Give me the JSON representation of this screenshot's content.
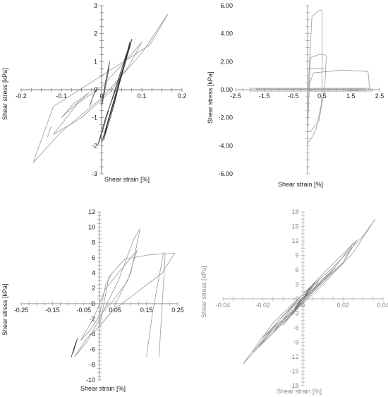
{
  "chart_data": [
    {
      "type": "line",
      "xlabel": "Shear strain [%]",
      "ylabel": "Shear stress [kPa]",
      "xlim": [
        -0.2,
        0.2
      ],
      "ylim": [
        -3,
        3
      ],
      "xticks": [
        "-0.2",
        "-0.1",
        "0",
        "0.1",
        "0.2"
      ],
      "xtick_values": [
        -0.2,
        -0.1,
        0,
        0.1,
        0.2
      ],
      "yticks": [
        "3",
        "2",
        "1",
        "0",
        "-1",
        "-2",
        "-3"
      ],
      "ytick_values": [
        3,
        2,
        1,
        0,
        -1,
        -2,
        -3
      ],
      "grid": false,
      "series": [
        {
          "stroke": "#9a9a9a",
          "width": 0.8,
          "x": [
            -0.17,
            -0.1,
            0.0,
            0.1,
            0.16,
            0.165,
            0.12,
            0.0,
            -0.12,
            -0.17
          ],
          "y": [
            -2.6,
            -1.5,
            -0.3,
            1.3,
            2.6,
            2.7,
            1.6,
            0.5,
            -0.6,
            -2.6
          ]
        },
        {
          "stroke": "#9a9a9a",
          "width": 0.8,
          "x": [
            -0.12,
            -0.05,
            0.02,
            0.07,
            0.1,
            0.07,
            0.0,
            -0.06,
            -0.12
          ],
          "y": [
            -1.6,
            -1.0,
            -0.1,
            0.9,
            1.7,
            1.2,
            0.1,
            -0.5,
            -1.6
          ]
        },
        {
          "stroke": "#9a9a9a",
          "width": 0.8,
          "x": [
            -0.1,
            -0.07,
            -0.03,
            -0.07,
            -0.1
          ],
          "y": [
            -1.0,
            -0.5,
            -0.1,
            -0.6,
            -1.0
          ]
        },
        {
          "stroke": "#9a9a9a",
          "width": 0.8,
          "x": [
            -0.135,
            -0.125
          ],
          "y": [
            -1.7,
            -1.3
          ]
        },
        {
          "stroke": "#333333",
          "width": 0.8,
          "x": [
            -0.01,
            0.0,
            0.02,
            0.06,
            0.075,
            0.07,
            0.04,
            0.01,
            -0.01
          ],
          "y": [
            -2.0,
            -1.6,
            -0.6,
            1.2,
            1.8,
            1.5,
            0.2,
            -1.0,
            -2.0
          ]
        },
        {
          "stroke": "#333333",
          "width": 0.8,
          "x": [
            0.0,
            0.02,
            0.05,
            0.075,
            0.06,
            0.03,
            0.0
          ],
          "y": [
            -1.9,
            -0.9,
            0.6,
            1.8,
            1.0,
            -0.5,
            -1.9
          ]
        },
        {
          "stroke": "#333333",
          "width": 0.8,
          "x": [
            0.005,
            0.03,
            0.06,
            0.07,
            0.045,
            0.015,
            0.005
          ],
          "y": [
            -1.8,
            -0.6,
            1.1,
            1.7,
            0.3,
            -1.2,
            -1.8
          ]
        },
        {
          "stroke": "#333333",
          "width": 0.8,
          "x": [
            0.0,
            0.015,
            0.02,
            0.01,
            0.0
          ],
          "y": [
            -0.6,
            0.5,
            1.0,
            0.3,
            -0.6
          ]
        },
        {
          "stroke": "#333333",
          "width": 0.8,
          "x": [
            -0.03,
            -0.02,
            -0.01
          ],
          "y": [
            -0.6,
            -0.2,
            0.1
          ]
        }
      ]
    },
    {
      "type": "line",
      "xlabel": "Shear strain [%]",
      "ylabel": "Shear stress [kPa]",
      "xlim": [
        -2.5,
        2.5
      ],
      "ylim": [
        -6,
        6
      ],
      "xticks": [
        "-2.5",
        "-1.5",
        "-0.5",
        "0.5",
        "1.5",
        "2.5"
      ],
      "xtick_values": [
        -2.5,
        -1.5,
        -0.5,
        0.5,
        1.5,
        2.5
      ],
      "yticks": [
        "6.00",
        "4.00",
        "2.00",
        "0.00",
        "-2.00",
        "-4.00",
        "-6.00"
      ],
      "ytick_values": [
        6,
        4,
        2,
        0,
        -2,
        -4,
        -6
      ],
      "grid": false,
      "series": [
        {
          "stroke": "#9a9a9a",
          "width": 0.8,
          "x": [
            0.0,
            0.02,
            0.15,
            0.35,
            0.48,
            0.5,
            0.5,
            0.48,
            0.3,
            0.1,
            0.0
          ],
          "y": [
            -3.8,
            0.0,
            5.2,
            5.6,
            5.7,
            5.6,
            0.0,
            -1.0,
            -2.8,
            -3.6,
            -3.8
          ]
        },
        {
          "stroke": "#9a9a9a",
          "width": 0.8,
          "x": [
            0.0,
            0.1,
            0.4,
            0.6,
            0.65,
            0.6,
            0.4,
            0.1,
            0.0
          ],
          "y": [
            -3.0,
            2.3,
            2.5,
            2.5,
            2.4,
            0.2,
            -2.2,
            -3.0,
            -3.0
          ]
        },
        {
          "stroke": "#9a9a9a",
          "width": 0.8,
          "x": [
            0.0,
            0.2,
            1.2,
            2.1,
            2.15,
            2.1,
            1.2,
            0.2,
            0.0
          ],
          "y": [
            0.0,
            1.2,
            1.4,
            1.3,
            0.2,
            0.0,
            -0.1,
            -0.1,
            0.0
          ]
        },
        {
          "stroke": "#9a9a9a",
          "width": 0.8,
          "x": [
            -2.0,
            2.2,
            2.2,
            -2.0,
            -2.0
          ],
          "y": [
            0.1,
            0.1,
            -0.1,
            -0.1,
            0.1
          ]
        },
        {
          "stroke": "#9a9a9a",
          "width": 0.8,
          "x": [
            -1.8,
            2.0
          ],
          "y": [
            0.05,
            0.05
          ]
        },
        {
          "stroke": "#9a9a9a",
          "width": 0.8,
          "x": [
            0.0,
            0.0
          ],
          "y": [
            -3.8,
            6.0
          ]
        },
        {
          "stroke": "#9a9a9a",
          "width": 0.8,
          "x": [
            -0.05,
            0.6
          ],
          "y": [
            1.5,
            1.5
          ]
        }
      ]
    },
    {
      "type": "line",
      "xlabel": "Shear strain [%]",
      "ylabel": "Shear stress [kPa]",
      "xlim": [
        -0.25,
        0.25
      ],
      "ylim": [
        -10,
        12
      ],
      "xticks": [
        "-0.25",
        "-0.15",
        "-0.05",
        "0.05",
        "0.15",
        "0.25"
      ],
      "xtick_values": [
        -0.25,
        -0.15,
        -0.05,
        0.05,
        0.15,
        0.25
      ],
      "yticks": [
        "12",
        "10",
        "8",
        "6",
        "4",
        "2",
        "0",
        "-2",
        "-4",
        "-6",
        "-8",
        "-10"
      ],
      "ytick_values": [
        12,
        10,
        8,
        6,
        4,
        2,
        0,
        -2,
        -4,
        -6,
        -8,
        -10
      ],
      "grid": false,
      "series": [
        {
          "stroke": "#9a9a9a",
          "width": 0.8,
          "x": [
            -0.08,
            -0.04,
            0.0,
            0.06,
            0.11,
            0.13,
            0.1,
            0.04,
            0.0,
            -0.04,
            -0.08
          ],
          "y": [
            -7.0,
            -5.0,
            -2.0,
            3.0,
            8.5,
            9.8,
            4.0,
            -1.0,
            -3.0,
            -4.5,
            -7.0
          ]
        },
        {
          "stroke": "#9a9a9a",
          "width": 0.8,
          "x": [
            -0.06,
            -0.02,
            0.02,
            0.08,
            0.12,
            0.09,
            0.04,
            0.0,
            -0.03,
            -0.06
          ],
          "y": [
            -4.8,
            -2.0,
            2.0,
            5.0,
            7.0,
            3.0,
            0.2,
            -1.6,
            -3.5,
            -4.8
          ]
        },
        {
          "stroke": "#9a9a9a",
          "width": 0.8,
          "x": [
            0.0,
            0.03,
            0.08,
            0.16,
            0.24,
            0.2,
            0.12,
            0.04,
            0.0
          ],
          "y": [
            -3.0,
            3.5,
            5.8,
            6.4,
            6.6,
            4.0,
            1.5,
            -1.0,
            -3.0
          ]
        },
        {
          "stroke": "#9a9a9a",
          "width": 0.8,
          "x": [
            0.0,
            0.01,
            0.02,
            0.04
          ],
          "y": [
            -1.5,
            0.5,
            2.5,
            4.0
          ]
        },
        {
          "stroke": "#9a9a9a",
          "width": 0.8,
          "x": [
            0.15,
            0.17,
            0.205
          ],
          "y": [
            -7.0,
            -1.0,
            6.8
          ]
        },
        {
          "stroke": "#9a9a9a",
          "width": 0.8,
          "x": [
            0.19,
            0.21
          ],
          "y": [
            -7.0,
            6.5
          ]
        },
        {
          "stroke": "#333333",
          "width": 0.8,
          "x": [
            -0.09,
            -0.075
          ],
          "y": [
            -7.0,
            -5.0
          ]
        },
        {
          "stroke": "#333333",
          "width": 0.8,
          "x": [
            -0.085,
            -0.07
          ],
          "y": [
            -6.5,
            -4.5
          ]
        }
      ]
    },
    {
      "type": "line",
      "xlabel": "Shear strain [%]",
      "ylabel": "Shear stress [kPa]",
      "xlim": [
        -0.04,
        0.04
      ],
      "ylim": [
        -18,
        18
      ],
      "xticks": [
        "-0.04",
        "-0.02",
        "0",
        "0.02",
        "0.04"
      ],
      "xtick_values": [
        -0.04,
        -0.02,
        0,
        0.02,
        0.04
      ],
      "yticks": [
        "18",
        "15",
        "12",
        "9",
        "6",
        "3",
        "0",
        "-3",
        "-6",
        "-9",
        "-12",
        "-15",
        "-18"
      ],
      "ytick_values": [
        18,
        15,
        12,
        9,
        6,
        3,
        0,
        -3,
        -6,
        -9,
        -12,
        -15,
        -18
      ],
      "grid": false,
      "series": [
        {
          "stroke": "#9a9a9a",
          "width": 0.8,
          "x": [
            -0.03,
            -0.02,
            -0.005,
            0.01,
            0.025,
            0.036,
            0.03,
            0.015,
            0.0,
            -0.015,
            -0.03
          ],
          "y": [
            -13.5,
            -9.0,
            -3.0,
            3.0,
            9.5,
            16.5,
            13.0,
            6.5,
            1.0,
            -5.0,
            -13.5
          ]
        },
        {
          "stroke": "#9a9a9a",
          "width": 0.8,
          "x": [
            -0.025,
            -0.015,
            0.0,
            0.015,
            0.025,
            0.02,
            0.005,
            -0.01,
            -0.025
          ],
          "y": [
            -11.0,
            -6.5,
            -0.5,
            6.0,
            11.5,
            7.5,
            2.0,
            -3.5,
            -11.0
          ]
        },
        {
          "stroke": "#9a9a9a",
          "width": 0.8,
          "x": [
            -0.022,
            -0.01,
            0.005,
            0.02,
            0.027,
            0.018,
            0.0,
            -0.012,
            -0.022
          ],
          "y": [
            -10.0,
            -5.0,
            1.5,
            7.5,
            12.2,
            8.5,
            1.0,
            -4.5,
            -10.0
          ]
        },
        {
          "stroke": "#9a9a9a",
          "width": 0.8,
          "x": [
            -0.02,
            -0.008,
            0.006,
            0.016,
            0.01,
            -0.004,
            -0.02
          ],
          "y": [
            -8.0,
            -3.5,
            2.5,
            6.5,
            3.5,
            -1.0,
            -8.0
          ]
        },
        {
          "stroke": "#9a9a9a",
          "width": 0.8,
          "x": [
            -0.015,
            -0.005,
            0.006,
            0.012,
            0.006,
            -0.006,
            -0.015
          ],
          "y": [
            -7.0,
            -2.5,
            2.0,
            5.0,
            2.0,
            -2.0,
            -7.0
          ]
        },
        {
          "stroke": "#9a9a9a",
          "width": 0.8,
          "x": [
            -0.01,
            -0.002,
            0.005,
            0.008,
            0.002,
            -0.004,
            -0.01
          ],
          "y": [
            -5.5,
            -1.5,
            1.5,
            4.0,
            1.0,
            -2.0,
            -5.5
          ]
        },
        {
          "stroke": "#6a6a6a",
          "width": 0.8,
          "x": [
            -0.006,
            -0.001,
            0.003,
            0.006,
            0.002,
            -0.002,
            -0.006
          ],
          "y": [
            -3.5,
            -0.5,
            1.5,
            3.5,
            0.8,
            -1.5,
            -3.5
          ]
        },
        {
          "stroke": "#6a6a6a",
          "width": 0.8,
          "x": [
            -0.004,
            0.0,
            0.004,
            0.0,
            -0.004
          ],
          "y": [
            -2.0,
            0.5,
            2.5,
            0.0,
            -2.0
          ]
        }
      ]
    }
  ]
}
